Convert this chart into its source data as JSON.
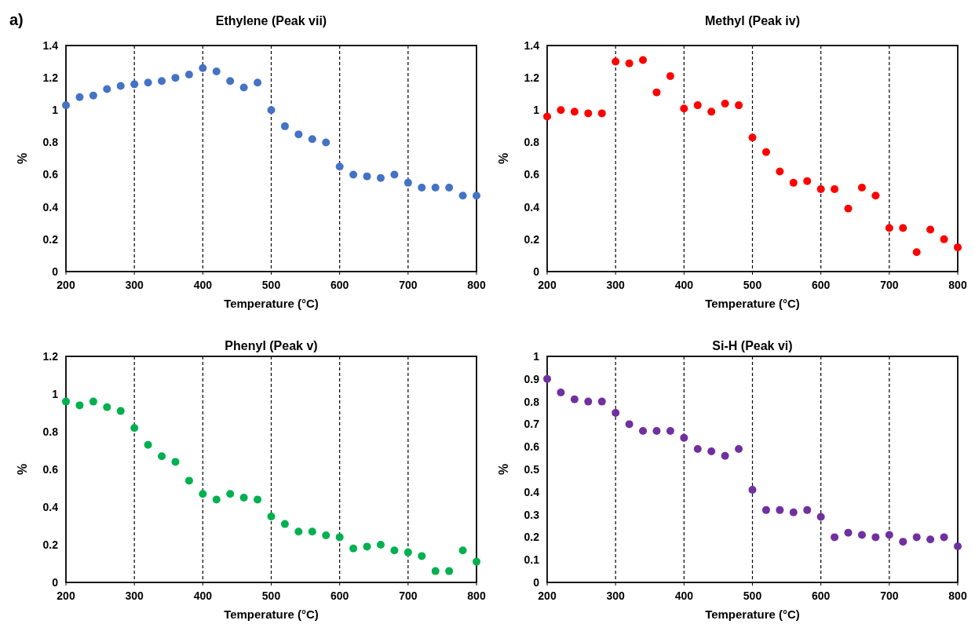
{
  "chart_data": [
    {
      "type": "scatter",
      "title": "Ethylene (Peak vii)",
      "xlabel": "Temperature (°C)",
      "ylabel": "%",
      "annotations": [
        "a)"
      ],
      "x": [
        200,
        220,
        240,
        260,
        280,
        300,
        320,
        340,
        360,
        380,
        400,
        420,
        440,
        460,
        480,
        500,
        520,
        540,
        560,
        580,
        600,
        620,
        640,
        660,
        680,
        700,
        720,
        740,
        760,
        780,
        800
      ],
      "series": [
        {
          "color": "#4472c4",
          "values": [
            1.03,
            1.08,
            1.09,
            1.13,
            1.15,
            1.16,
            1.17,
            1.18,
            1.2,
            1.22,
            1.26,
            1.24,
            1.18,
            1.14,
            1.17,
            1.0,
            0.9,
            0.85,
            0.82,
            0.8,
            0.65,
            0.6,
            0.59,
            0.58,
            0.6,
            0.55,
            0.52,
            0.52,
            0.52,
            0.47,
            0.47
          ]
        }
      ],
      "xlim": [
        200,
        800
      ],
      "xticks": [
        200,
        300,
        400,
        500,
        600,
        700,
        800
      ],
      "ylim": [
        0,
        1.4
      ],
      "yticks": [
        0,
        0.2,
        0.4,
        0.6,
        0.8,
        1,
        1.2,
        1.4
      ],
      "grid": "x",
      "marker": "circle"
    },
    {
      "type": "scatter",
      "title": "Methyl (Peak iv)",
      "xlabel": "Temperature (°C)",
      "ylabel": "%",
      "x": [
        200,
        220,
        240,
        260,
        280,
        300,
        320,
        340,
        360,
        380,
        400,
        420,
        440,
        460,
        480,
        500,
        520,
        540,
        560,
        580,
        600,
        620,
        640,
        660,
        680,
        700,
        720,
        740,
        760,
        780,
        800
      ],
      "series": [
        {
          "color": "#ff0000",
          "values": [
            0.96,
            1.0,
            0.99,
            0.98,
            0.98,
            1.3,
            1.29,
            1.31,
            1.11,
            1.21,
            1.01,
            1.03,
            0.99,
            1.04,
            1.03,
            0.83,
            0.74,
            0.62,
            0.55,
            0.56,
            0.51,
            0.51,
            0.39,
            0.52,
            0.47,
            0.27,
            0.27,
            0.12,
            0.26,
            0.2,
            0.15
          ]
        }
      ],
      "xlim": [
        200,
        800
      ],
      "xticks": [
        200,
        300,
        400,
        500,
        600,
        700,
        800
      ],
      "ylim": [
        0,
        1.4
      ],
      "yticks": [
        0,
        0.2,
        0.4,
        0.6,
        0.8,
        1,
        1.2,
        1.4
      ],
      "grid": "x",
      "marker": "circle"
    },
    {
      "type": "scatter",
      "title": "Phenyl (Peak v)",
      "xlabel": "Temperature (°C)",
      "ylabel": "%",
      "x": [
        200,
        220,
        240,
        260,
        280,
        300,
        320,
        340,
        360,
        380,
        400,
        420,
        440,
        460,
        480,
        500,
        520,
        540,
        560,
        580,
        600,
        620,
        640,
        660,
        680,
        700,
        720,
        740,
        760,
        780,
        800
      ],
      "series": [
        {
          "color": "#00b050",
          "values": [
            0.96,
            0.94,
            0.96,
            0.93,
            0.91,
            0.82,
            0.73,
            0.67,
            0.64,
            0.54,
            0.47,
            0.44,
            0.47,
            0.45,
            0.44,
            0.35,
            0.31,
            0.27,
            0.27,
            0.25,
            0.24,
            0.18,
            0.19,
            0.2,
            0.17,
            0.16,
            0.14,
            0.06,
            0.06,
            0.17,
            0.11
          ]
        }
      ],
      "xlim": [
        200,
        800
      ],
      "xticks": [
        200,
        300,
        400,
        500,
        600,
        700,
        800
      ],
      "ylim": [
        0,
        1.2
      ],
      "yticks": [
        0,
        0.2,
        0.4,
        0.6,
        0.8,
        1,
        1.2
      ],
      "grid": "x",
      "marker": "circle"
    },
    {
      "type": "scatter",
      "title": "Si-H (Peak vi)",
      "xlabel": "Temperature (°C)",
      "ylabel": "%",
      "x": [
        200,
        220,
        240,
        260,
        280,
        300,
        320,
        340,
        360,
        380,
        400,
        420,
        440,
        460,
        480,
        500,
        520,
        540,
        560,
        580,
        600,
        620,
        640,
        660,
        680,
        700,
        720,
        740,
        760,
        780,
        800
      ],
      "series": [
        {
          "color": "#7030a0",
          "values": [
            0.9,
            0.84,
            0.81,
            0.8,
            0.8,
            0.75,
            0.7,
            0.67,
            0.67,
            0.67,
            0.64,
            0.59,
            0.58,
            0.56,
            0.59,
            0.41,
            0.32,
            0.32,
            0.31,
            0.32,
            0.29,
            0.2,
            0.22,
            0.21,
            0.2,
            0.21,
            0.18,
            0.2,
            0.19,
            0.2,
            0.16
          ]
        }
      ],
      "xlim": [
        200,
        800
      ],
      "xticks": [
        200,
        300,
        400,
        500,
        600,
        700,
        800
      ],
      "ylim": [
        0,
        1
      ],
      "yticks": [
        0,
        0.1,
        0.2,
        0.3,
        0.4,
        0.5,
        0.6,
        0.7,
        0.8,
        0.9,
        1
      ],
      "grid": "x",
      "marker": "circle"
    }
  ]
}
